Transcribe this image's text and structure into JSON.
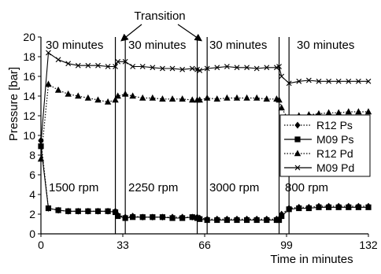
{
  "chart_data": {
    "type": "line",
    "title": "",
    "xlabel": "Time in minutes",
    "ylabel": "Pressure  [bar]",
    "xlim": [
      0,
      132
    ],
    "ylim": [
      0,
      20
    ],
    "xticks": [
      0,
      33,
      66,
      99,
      132
    ],
    "yticks": [
      0,
      2,
      4,
      6,
      8,
      10,
      12,
      14,
      16,
      18,
      20
    ],
    "grid": false,
    "legend_position": "right",
    "phase_boundaries": [
      30,
      34,
      63,
      67,
      96,
      100
    ],
    "top_annotation": "Transition",
    "phase_labels": [
      "30 minutes",
      "30 minutes",
      "30 minutes",
      "30 minutes"
    ],
    "speed_labels": [
      "1500 rpm",
      "2250 rpm",
      "3000 rpm",
      "800 rpm"
    ],
    "series": [
      {
        "name": "R12 Ps",
        "marker": "diamond",
        "line": "dotted",
        "x": [
          0,
          3,
          7,
          11,
          15,
          19,
          23,
          27,
          30,
          31,
          34,
          37,
          41,
          45,
          49,
          53,
          57,
          61,
          63,
          64,
          67,
          71,
          75,
          79,
          83,
          87,
          91,
          95,
          96,
          97,
          100,
          104,
          108,
          112,
          116,
          120,
          124,
          128,
          132
        ],
        "y": [
          9.5,
          2.6,
          2.4,
          2.3,
          2.3,
          2.3,
          2.3,
          2.3,
          2.3,
          1.9,
          1.7,
          1.8,
          1.7,
          1.7,
          1.7,
          1.7,
          1.7,
          1.7,
          1.7,
          1.6,
          1.5,
          1.5,
          1.5,
          1.5,
          1.5,
          1.5,
          1.5,
          1.5,
          1.5,
          2.0,
          2.6,
          2.7,
          2.7,
          2.8,
          2.8,
          2.8,
          2.8,
          2.8,
          2.8
        ]
      },
      {
        "name": "M09 Ps",
        "marker": "square",
        "line": "solid",
        "x": [
          0,
          3,
          7,
          11,
          15,
          19,
          23,
          27,
          30,
          31,
          34,
          37,
          41,
          45,
          49,
          53,
          57,
          61,
          63,
          64,
          67,
          71,
          75,
          79,
          83,
          87,
          91,
          95,
          96,
          97,
          100,
          104,
          108,
          112,
          116,
          120,
          124,
          128,
          132
        ],
        "y": [
          8.9,
          2.6,
          2.4,
          2.3,
          2.3,
          2.3,
          2.3,
          2.3,
          2.2,
          1.8,
          1.6,
          1.7,
          1.7,
          1.7,
          1.7,
          1.6,
          1.6,
          1.7,
          1.6,
          1.5,
          1.4,
          1.4,
          1.4,
          1.4,
          1.4,
          1.4,
          1.4,
          1.4,
          1.4,
          1.8,
          2.5,
          2.6,
          2.6,
          2.7,
          2.7,
          2.7,
          2.7,
          2.7,
          2.7
        ]
      },
      {
        "name": "R12 Pd",
        "marker": "triangle",
        "line": "dotted",
        "x": [
          0,
          3,
          7,
          11,
          15,
          19,
          23,
          27,
          30,
          31,
          34,
          37,
          41,
          45,
          49,
          53,
          57,
          61,
          63,
          64,
          67,
          71,
          75,
          79,
          83,
          87,
          91,
          95,
          96,
          97,
          100,
          104,
          108,
          112,
          116,
          120,
          124,
          128,
          132
        ],
        "y": [
          7.6,
          15.2,
          14.6,
          14.2,
          14.0,
          13.8,
          13.6,
          13.4,
          13.6,
          14.0,
          14.2,
          14.0,
          13.8,
          13.8,
          13.7,
          13.7,
          13.7,
          13.6,
          13.6,
          13.6,
          13.8,
          13.7,
          13.8,
          13.8,
          13.8,
          13.8,
          13.7,
          13.7,
          13.6,
          12.8,
          11.5,
          12.0,
          12.1,
          12.2,
          12.3,
          12.3,
          12.4,
          12.4,
          12.4
        ]
      },
      {
        "name": "M09 Pd",
        "marker": "x",
        "line": "solid",
        "x": [
          0,
          3,
          7,
          11,
          15,
          19,
          23,
          27,
          30,
          31,
          34,
          37,
          41,
          45,
          49,
          53,
          57,
          61,
          63,
          64,
          67,
          71,
          75,
          79,
          83,
          87,
          91,
          95,
          96,
          97,
          100,
          104,
          108,
          112,
          116,
          120,
          124,
          128,
          132
        ],
        "y": [
          9.2,
          18.4,
          17.7,
          17.3,
          17.1,
          17.1,
          17.1,
          17.0,
          17.0,
          17.5,
          17.5,
          17.0,
          17.0,
          16.9,
          16.8,
          16.8,
          16.7,
          16.8,
          16.7,
          16.6,
          16.8,
          16.9,
          17.0,
          16.9,
          16.9,
          16.8,
          16.9,
          16.9,
          17.0,
          16.0,
          15.3,
          15.5,
          15.6,
          15.5,
          15.5,
          15.5,
          15.5,
          15.5,
          15.5
        ]
      }
    ]
  }
}
